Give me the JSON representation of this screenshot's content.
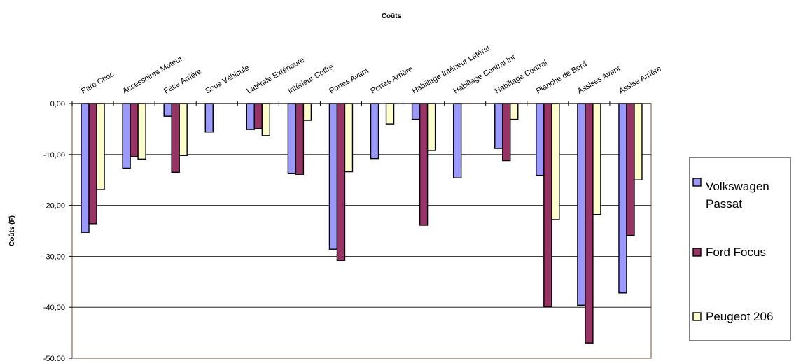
{
  "chart_data": {
    "type": "bar",
    "title": "Coûts",
    "ylabel": "Coûts (F)",
    "xlabel": "",
    "ylim": [
      -50,
      0
    ],
    "yticks": [
      "0,00",
      "-10,00",
      "-20,00",
      "-30,00",
      "-40,00",
      "-50,00"
    ],
    "grid": true,
    "legend_position": "right",
    "categories": [
      "Pare Choc",
      "Accessoires Moteur",
      "Face Arrière",
      "Sous Véhicule",
      "Latérale Extérieure",
      "Intérieur Coffre",
      "Portes Avant",
      "Portes Arrière",
      "Habillage Intérieur Latéral",
      "Habillage Central Inf",
      "Habillage Central",
      "Planche de Bord",
      "Assises Avant",
      "Assise Arrière"
    ],
    "series": [
      {
        "name": "Volkswagen Passat",
        "color": "#9999ff",
        "values": [
          -25.3,
          -12.7,
          -2.5,
          -5.6,
          -5.1,
          -13.7,
          -28.6,
          -10.8,
          -3.1,
          -14.6,
          -8.8,
          -14.1,
          -39.6,
          -37.2
        ]
      },
      {
        "name": "Ford Focus",
        "color": "#993366",
        "values": [
          -23.6,
          -10.4,
          -13.5,
          0,
          -4.9,
          -13.9,
          -30.8,
          0,
          -23.9,
          0,
          -11.2,
          -39.9,
          -47.0,
          -25.9
        ]
      },
      {
        "name": "Peugeot 206",
        "color": "#ffffcc",
        "values": [
          -16.9,
          -10.9,
          -10.2,
          0,
          -6.3,
          -3.3,
          -13.4,
          -4.0,
          -9.2,
          0,
          -3.1,
          -22.8,
          -21.8,
          -15.0
        ]
      }
    ]
  }
}
